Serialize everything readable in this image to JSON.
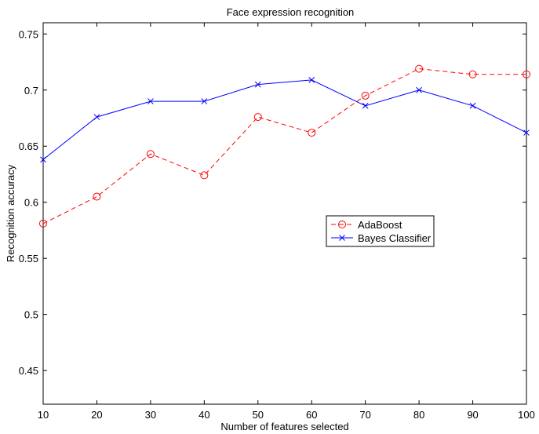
{
  "chart_data": {
    "type": "line",
    "title": "Face expression recognition",
    "xlabel": "Number of features selected",
    "ylabel": "Recognition accuracy",
    "x": [
      10,
      20,
      30,
      40,
      50,
      60,
      70,
      80,
      90,
      100
    ],
    "xlim": [
      10,
      100
    ],
    "ylim": [
      0.42,
      0.76
    ],
    "xticks": [
      "10",
      "20",
      "30",
      "40",
      "50",
      "60",
      "70",
      "80",
      "90",
      "100"
    ],
    "yticks": [
      "0.45",
      "0.5",
      "0.55",
      "0.6",
      "0.65",
      "0.7",
      "0.75"
    ],
    "grid": false,
    "legend_position": "center-right",
    "series": [
      {
        "name": "AdaBoost",
        "color": "#ff0000",
        "line_style": "dashed",
        "marker": "circle",
        "values": [
          0.581,
          0.605,
          0.643,
          0.624,
          0.676,
          0.662,
          0.695,
          0.719,
          0.714,
          0.714
        ]
      },
      {
        "name": "Bayes Classifier",
        "color": "#0000ff",
        "line_style": "solid",
        "marker": "x",
        "values": [
          0.638,
          0.676,
          0.69,
          0.69,
          0.705,
          0.709,
          0.686,
          0.7,
          0.686,
          0.662
        ]
      }
    ]
  }
}
